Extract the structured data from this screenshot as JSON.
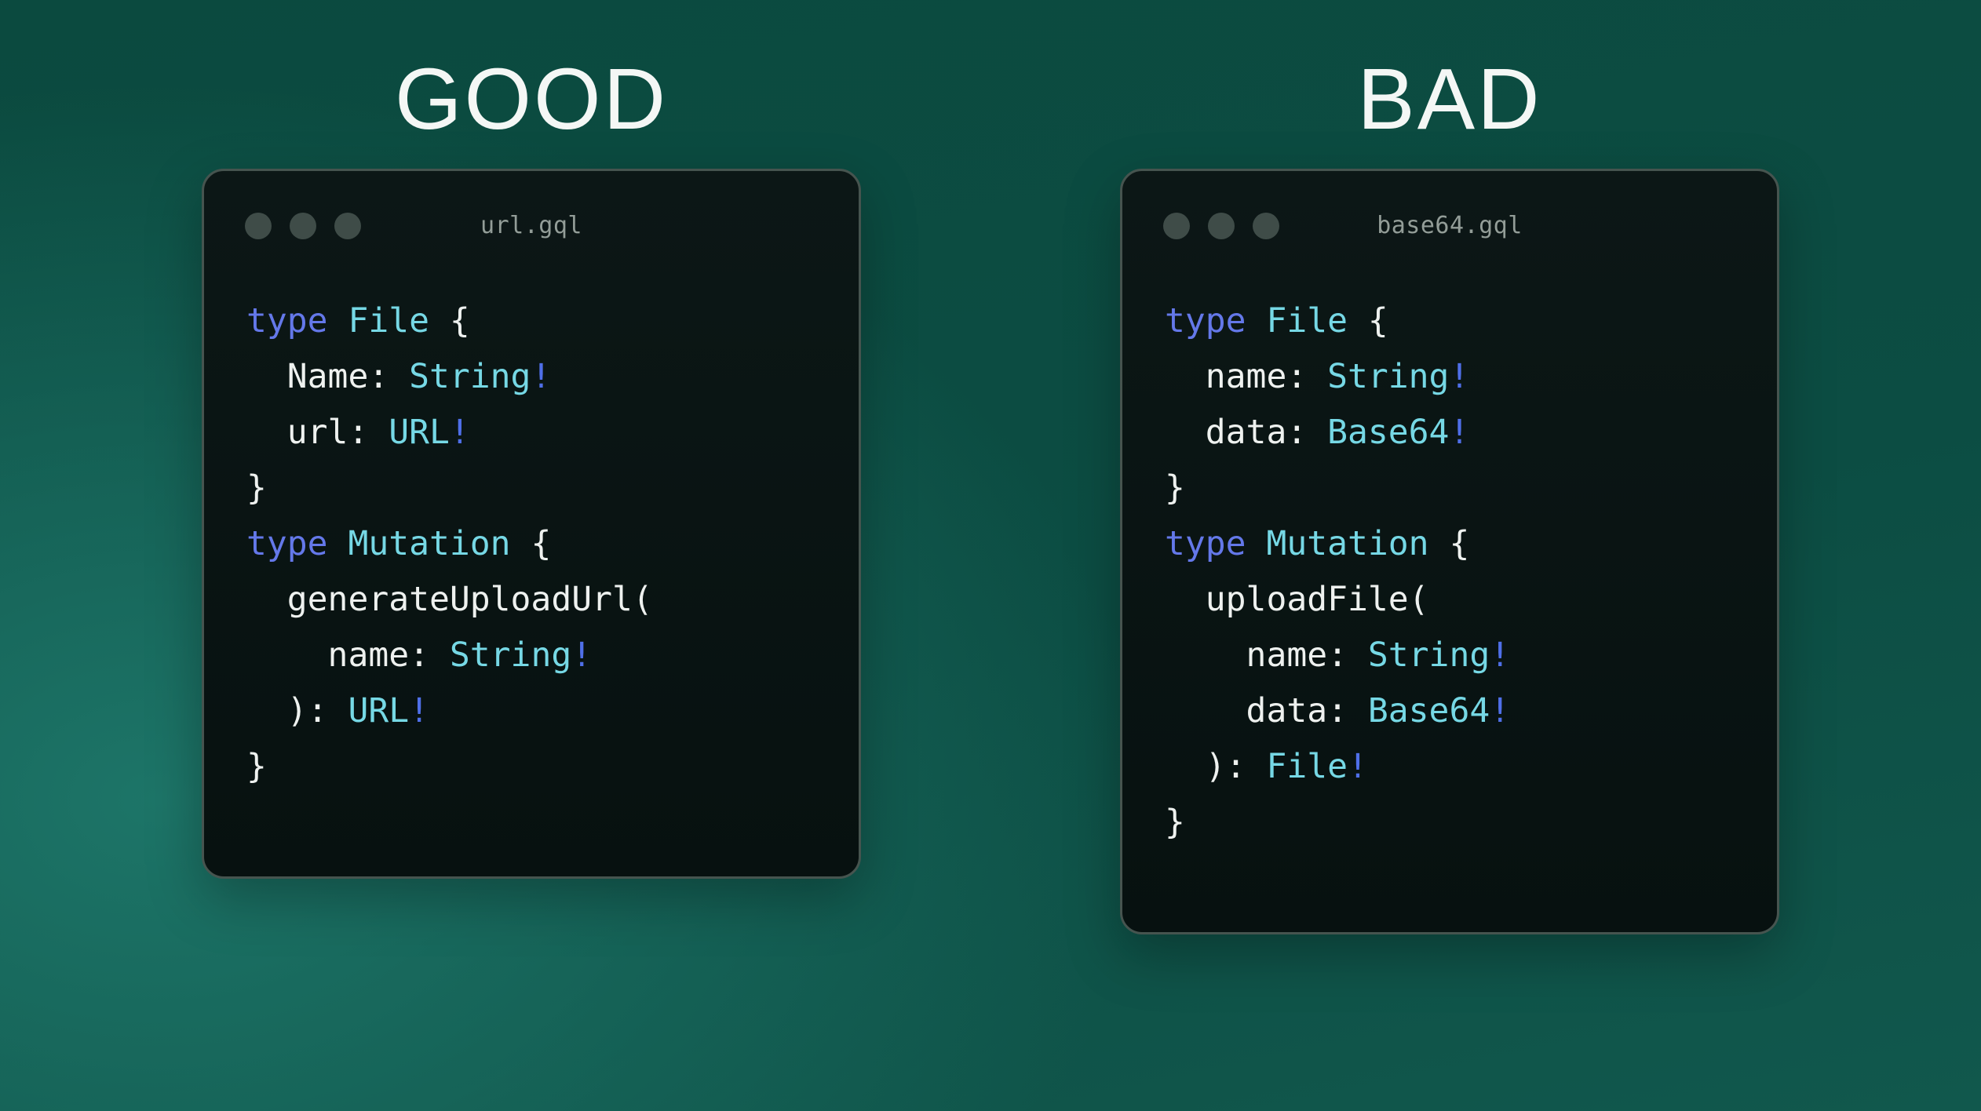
{
  "colors": {
    "heading": "#f4f7f5",
    "keyword": "#6478e9",
    "typename": "#76d8e5",
    "bang": "#4f6fe8",
    "plain": "#eef1ef",
    "filename": "#939d98",
    "dot": "#3f4c48",
    "window_border": "#46544f",
    "window_bg_top": "#0c1716",
    "window_bg_bottom": "#071110",
    "bg_top": "#0b4a3f",
    "bg_mid": "#0c4d43",
    "bg_bottom": "#11584d",
    "bg_glow": "#1d7568"
  },
  "panels": [
    {
      "heading": "GOOD",
      "window": {
        "filename": "url.gql",
        "code_lines": [
          [
            [
              "kw",
              "type"
            ],
            [
              "pl",
              " "
            ],
            [
              "ty",
              "File"
            ],
            [
              "pl",
              " {"
            ]
          ],
          [
            [
              "pl",
              "  Name: "
            ],
            [
              "ty",
              "String"
            ],
            [
              "bg",
              "!"
            ]
          ],
          [
            [
              "pl",
              "  url: "
            ],
            [
              "ty",
              "URL"
            ],
            [
              "bg",
              "!"
            ]
          ],
          [
            [
              "pl",
              "}"
            ]
          ],
          [
            [
              "kw",
              "type"
            ],
            [
              "pl",
              " "
            ],
            [
              "ty",
              "Mutation"
            ],
            [
              "pl",
              " {"
            ]
          ],
          [
            [
              "pl",
              "  generateUploadUrl("
            ]
          ],
          [
            [
              "pl",
              "    name: "
            ],
            [
              "ty",
              "String"
            ],
            [
              "bg",
              "!"
            ]
          ],
          [
            [
              "pl",
              "  ): "
            ],
            [
              "ty",
              "URL"
            ],
            [
              "bg",
              "!"
            ]
          ],
          [
            [
              "pl",
              "}"
            ]
          ]
        ]
      }
    },
    {
      "heading": "BAD",
      "window": {
        "filename": "base64.gql",
        "code_lines": [
          [
            [
              "kw",
              "type"
            ],
            [
              "pl",
              " "
            ],
            [
              "ty",
              "File"
            ],
            [
              "pl",
              " {"
            ]
          ],
          [
            [
              "pl",
              "  name: "
            ],
            [
              "ty",
              "String"
            ],
            [
              "bg",
              "!"
            ]
          ],
          [
            [
              "pl",
              "  data: "
            ],
            [
              "ty",
              "Base64"
            ],
            [
              "bg",
              "!"
            ]
          ],
          [
            [
              "pl",
              "}"
            ]
          ],
          [
            [
              "kw",
              "type"
            ],
            [
              "pl",
              " "
            ],
            [
              "ty",
              "Mutation"
            ],
            [
              "pl",
              " {"
            ]
          ],
          [
            [
              "pl",
              "  uploadFile("
            ]
          ],
          [
            [
              "pl",
              "    name: "
            ],
            [
              "ty",
              "String"
            ],
            [
              "bg",
              "!"
            ]
          ],
          [
            [
              "pl",
              "    data: "
            ],
            [
              "ty",
              "Base64"
            ],
            [
              "bg",
              "!"
            ]
          ],
          [
            [
              "pl",
              "  ): "
            ],
            [
              "ty",
              "File"
            ],
            [
              "bg",
              "!"
            ]
          ],
          [
            [
              "pl",
              "}"
            ]
          ]
        ]
      }
    }
  ]
}
